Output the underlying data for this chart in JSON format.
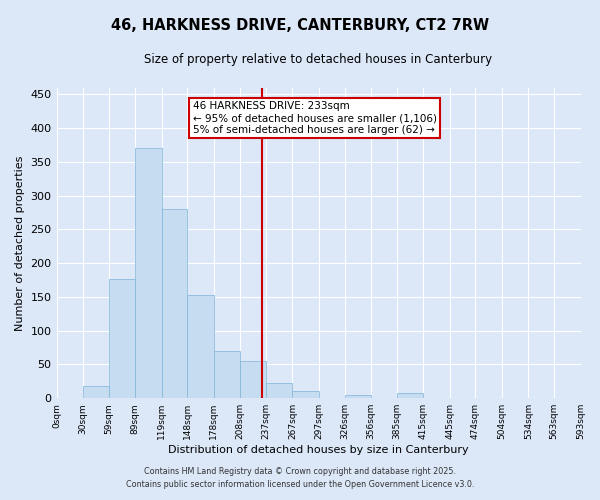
{
  "title": "46, HARKNESS DRIVE, CANTERBURY, CT2 7RW",
  "subtitle": "Size of property relative to detached houses in Canterbury",
  "xlabel": "Distribution of detached houses by size in Canterbury",
  "ylabel": "Number of detached properties",
  "footer_line1": "Contains HM Land Registry data © Crown copyright and database right 2025.",
  "footer_line2": "Contains public sector information licensed under the Open Government Licence v3.0.",
  "bar_edges": [
    0,
    30,
    59,
    89,
    119,
    148,
    178,
    208,
    237,
    267,
    297,
    326,
    356,
    385,
    415,
    445,
    474,
    504,
    534,
    563,
    593
  ],
  "bar_heights": [
    0,
    18,
    176,
    370,
    280,
    153,
    70,
    55,
    23,
    10,
    0,
    5,
    0,
    7,
    0,
    0,
    0,
    0,
    0,
    1
  ],
  "tick_labels": [
    "0sqm",
    "30sqm",
    "59sqm",
    "89sqm",
    "119sqm",
    "148sqm",
    "178sqm",
    "208sqm",
    "237sqm",
    "267sqm",
    "297sqm",
    "326sqm",
    "356sqm",
    "385sqm",
    "415sqm",
    "445sqm",
    "474sqm",
    "504sqm",
    "534sqm",
    "563sqm",
    "593sqm"
  ],
  "bar_color": "#c6dcf0",
  "bar_edge_color": "#7fb4d8",
  "bg_color": "#dce8f8",
  "grid_color": "#ffffff",
  "vline_x": 233,
  "vline_color": "#cc0000",
  "ylim": [
    0,
    460
  ],
  "yticks": [
    0,
    50,
    100,
    150,
    200,
    250,
    300,
    350,
    400,
    450
  ],
  "annotation_title": "46 HARKNESS DRIVE: 233sqm",
  "annotation_line1": "← 95% of detached houses are smaller (1,106)",
  "annotation_line2": "5% of semi-detached houses are larger (62) →",
  "annotation_box_color": "#cc0000",
  "annotation_text_color": "#000000",
  "annotation_bg_color": "#ffffff"
}
